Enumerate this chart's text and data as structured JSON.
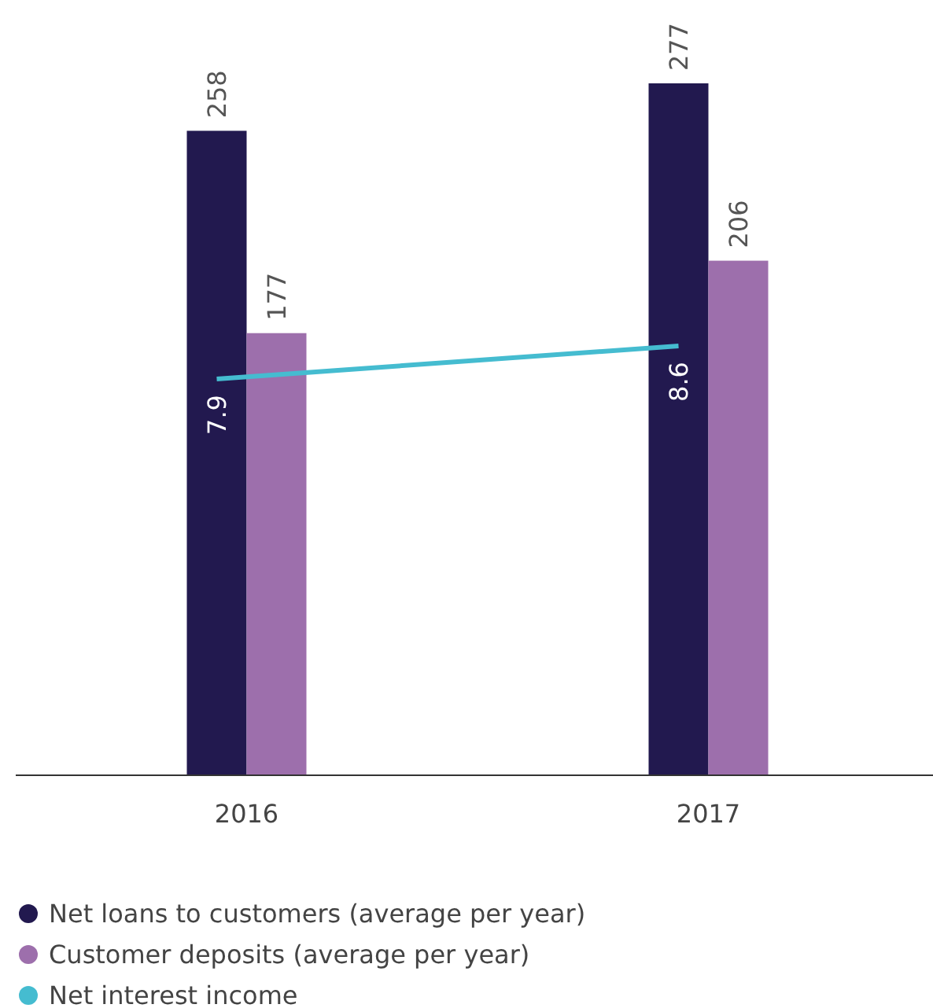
{
  "chart_data": {
    "type": "bar",
    "categories": [
      "2016",
      "2017"
    ],
    "series": [
      {
        "name": "Net loans to customers (average per year)",
        "color": "#22194f",
        "values": [
          258,
          277
        ]
      },
      {
        "name": "Customer deposits (average per year)",
        "color": "#9d6fac",
        "values": [
          177,
          206
        ]
      },
      {
        "name": "Net interest income",
        "color": "#45bcd0",
        "type": "line",
        "axis": "y2",
        "values": [
          7.9,
          8.6
        ]
      }
    ],
    "tick_labels": "x",
    "data_labels": true,
    "legend": "bottom"
  }
}
